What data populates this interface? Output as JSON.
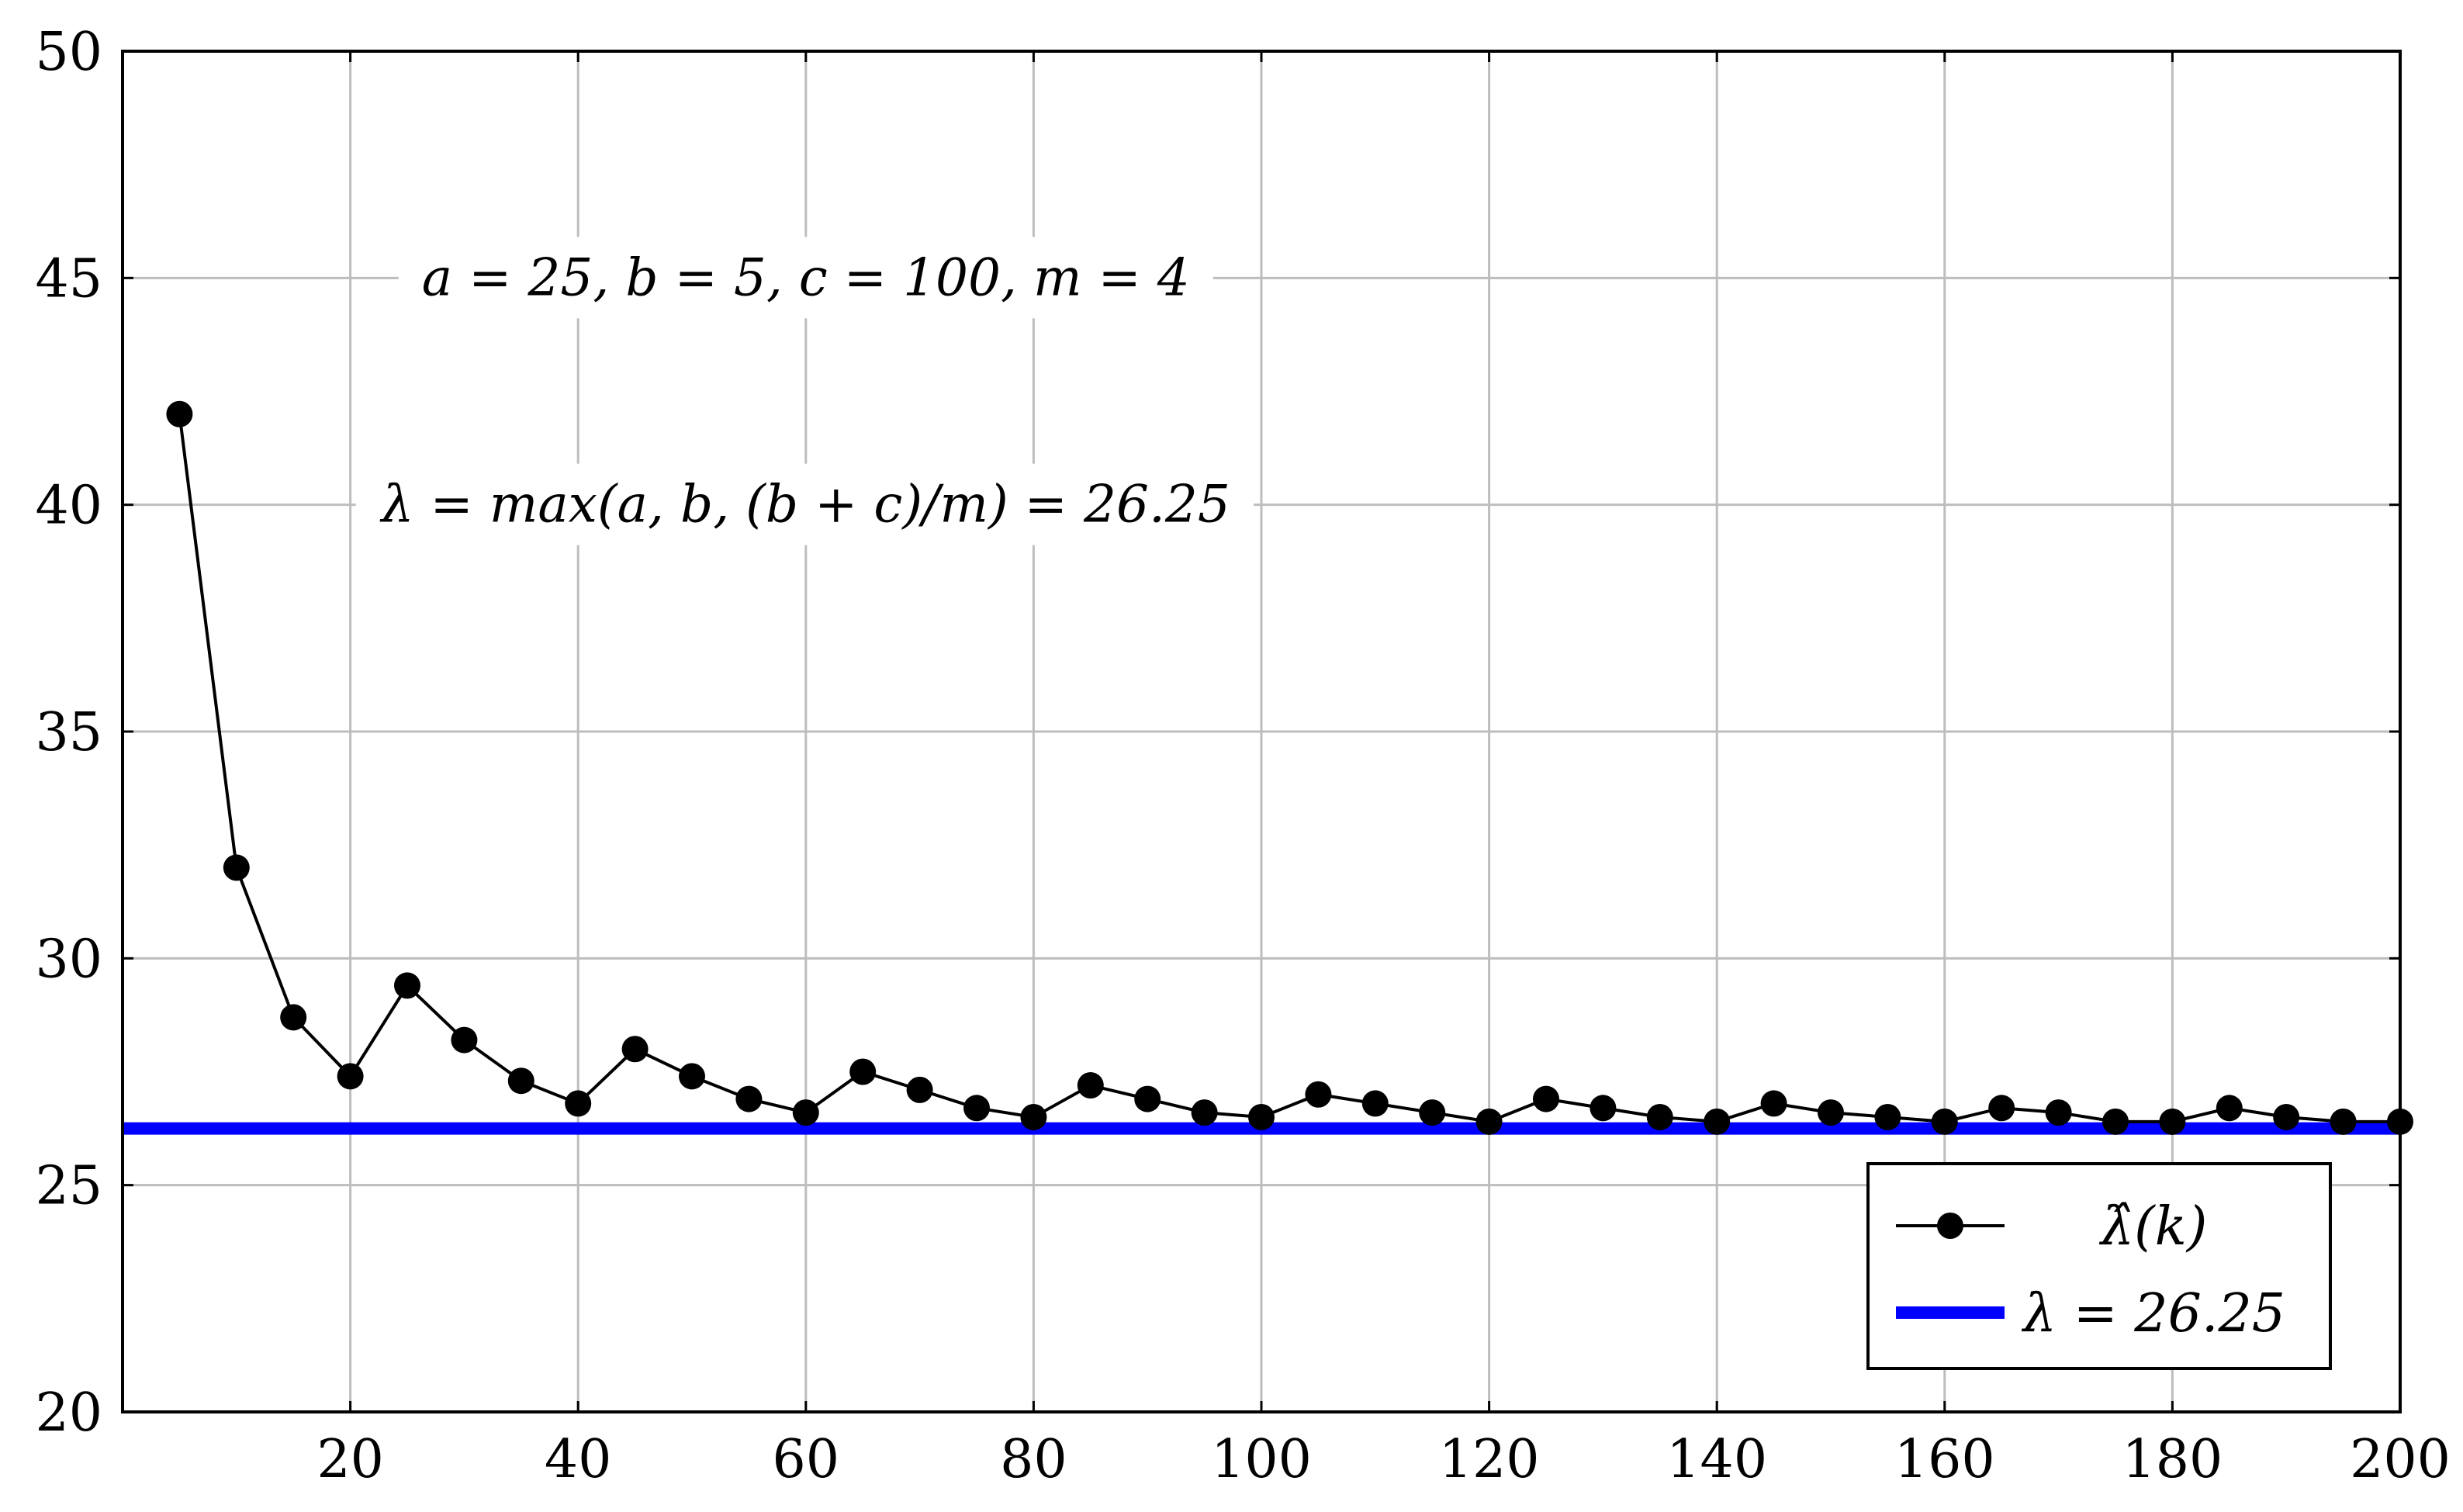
{
  "chart_data": {
    "type": "line",
    "title": "",
    "xlabel": "",
    "ylabel": "",
    "xlim": [
      0,
      200
    ],
    "ylim": [
      20,
      50
    ],
    "xticks": [
      20,
      40,
      60,
      80,
      100,
      120,
      140,
      160,
      180,
      200
    ],
    "yticks": [
      20,
      25,
      30,
      35,
      40,
      45,
      50
    ],
    "grid": true,
    "legend_position": "bottom-right",
    "series": [
      {
        "name": "λ̂(k)",
        "color": "#000000",
        "marker": "circle",
        "x": [
          5,
          10,
          15,
          20,
          25,
          30,
          35,
          40,
          45,
          50,
          55,
          60,
          65,
          70,
          75,
          80,
          85,
          90,
          95,
          100,
          105,
          110,
          115,
          120,
          125,
          130,
          135,
          140,
          145,
          150,
          155,
          160,
          165,
          170,
          175,
          180,
          185,
          190,
          195,
          200
        ],
        "values": [
          42.0,
          32.0,
          28.7,
          27.4,
          29.4,
          28.2,
          27.3,
          26.8,
          28.0,
          27.4,
          26.9,
          26.6,
          27.5,
          27.1,
          26.7,
          26.5,
          27.2,
          26.9,
          26.6,
          26.5,
          27.0,
          26.8,
          26.6,
          26.4,
          26.9,
          26.7,
          26.5,
          26.4,
          26.8,
          26.6,
          26.5,
          26.4,
          26.7,
          26.6,
          26.4,
          26.4,
          26.7,
          26.5,
          26.4,
          26.4
        ]
      },
      {
        "name": "λ = 26.25",
        "color": "#0000ff",
        "marker": "none",
        "constant": 26.25
      }
    ],
    "annotations": [
      {
        "text": "a = 25, b = 5, c = 100, m = 4",
        "x": 60,
        "y": 45
      },
      {
        "text": "λ = max(a, b, (b + c)/m) = 26.25",
        "x": 60,
        "y": 40
      }
    ]
  }
}
